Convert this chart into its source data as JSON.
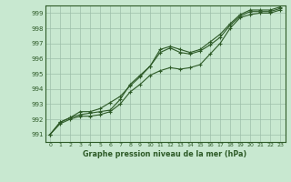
{
  "xlabel": "Graphe pression niveau de la mer (hPa)",
  "bg_color": "#c8e8d0",
  "grid_color": "#9dbfaa",
  "line_color": "#2d5a27",
  "ylim": [
    990.5,
    999.5
  ],
  "xlim": [
    -0.5,
    23.5
  ],
  "yticks": [
    991,
    992,
    993,
    994,
    995,
    996,
    997,
    998,
    999
  ],
  "xticks": [
    0,
    1,
    2,
    3,
    4,
    5,
    6,
    7,
    8,
    9,
    10,
    11,
    12,
    13,
    14,
    15,
    16,
    17,
    18,
    19,
    20,
    21,
    22,
    23
  ],
  "line1": [
    991.0,
    991.7,
    992.0,
    992.2,
    992.2,
    992.3,
    992.5,
    993.0,
    993.8,
    994.3,
    994.9,
    995.2,
    995.4,
    995.3,
    995.4,
    995.6,
    996.3,
    997.0,
    998.0,
    998.7,
    998.9,
    999.0,
    999.0,
    999.2
  ],
  "line2": [
    991.0,
    991.8,
    992.1,
    992.5,
    992.5,
    992.7,
    993.1,
    993.5,
    994.2,
    994.8,
    995.5,
    996.4,
    996.7,
    996.4,
    996.3,
    996.5,
    996.9,
    997.4,
    998.2,
    998.8,
    999.1,
    999.1,
    999.1,
    999.3
  ],
  "line3": [
    991.0,
    991.8,
    992.1,
    992.3,
    992.4,
    992.5,
    992.6,
    993.3,
    994.3,
    994.9,
    995.5,
    996.6,
    996.8,
    996.6,
    996.4,
    996.6,
    997.1,
    997.6,
    998.3,
    998.9,
    999.2,
    999.2,
    999.2,
    999.4
  ]
}
